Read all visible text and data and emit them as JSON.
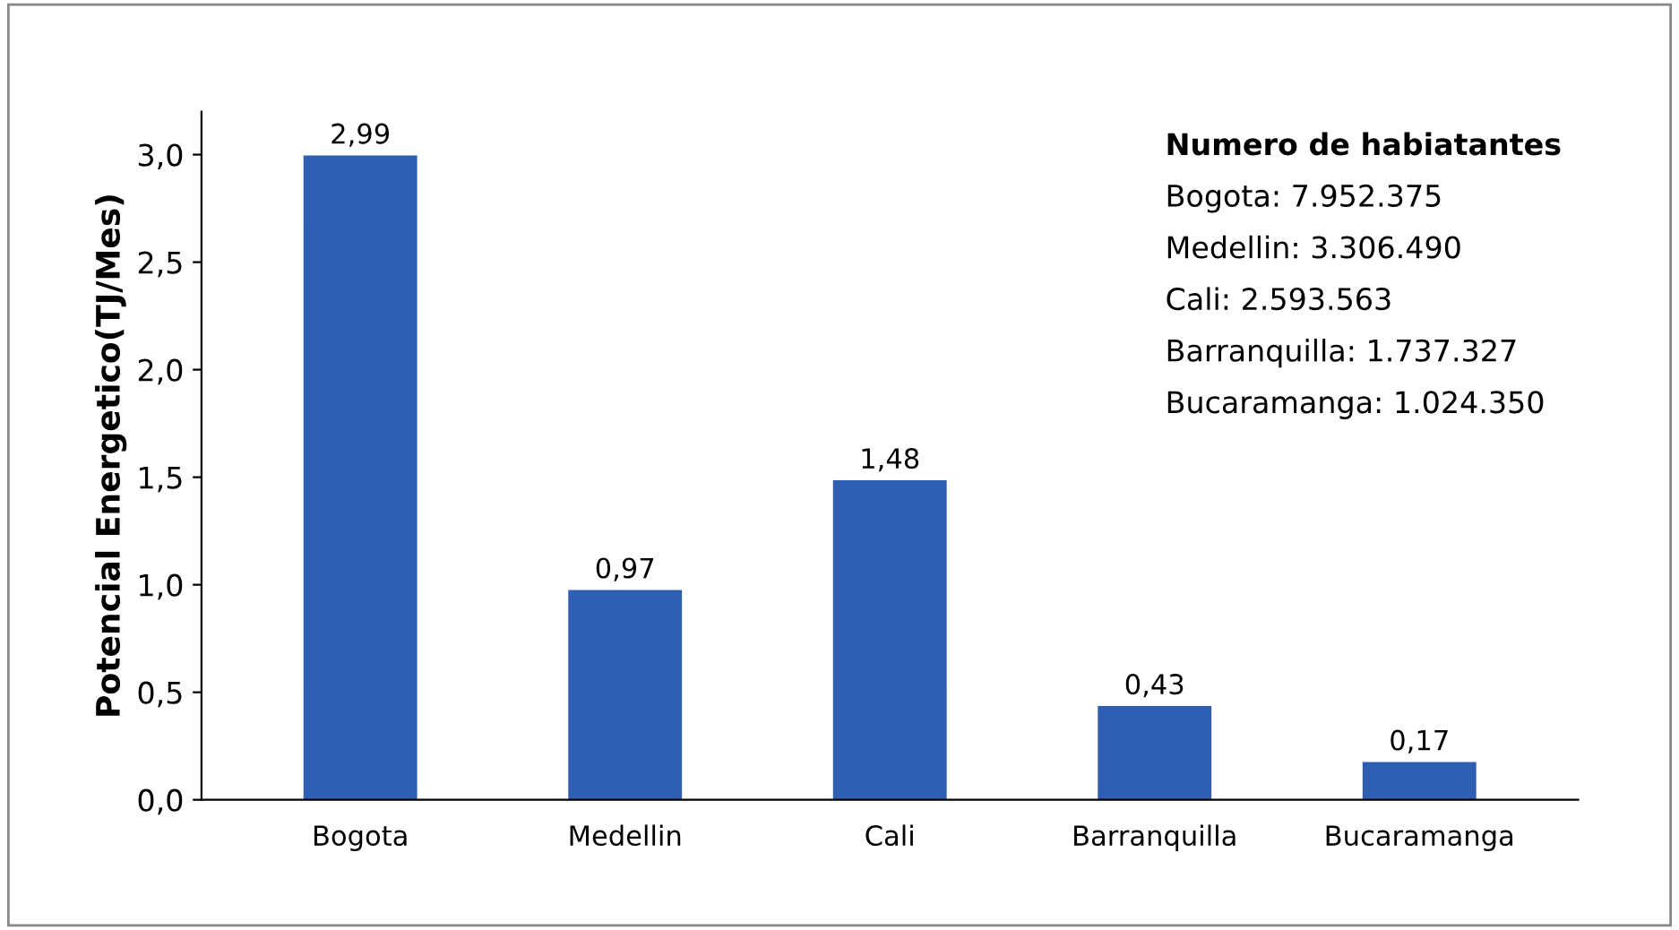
{
  "chart_data": {
    "type": "bar",
    "ylabel": "Potencial Energetico(TJ/Mes)",
    "categories": [
      "Bogota",
      "Medellin",
      "Cali",
      "Barranquilla",
      "Bucaramanga"
    ],
    "values": [
      2.99,
      0.97,
      1.48,
      0.43,
      0.17
    ],
    "value_labels": [
      "2,99",
      "0,97",
      "1,48",
      "0,43",
      "0,17"
    ],
    "color": "#2f5fb3",
    "ylim": [
      0,
      3.2
    ],
    "yticks": [
      {
        "value": 0,
        "label": "0,0"
      },
      {
        "value": 0.5,
        "label": "0,5"
      },
      {
        "value": 1.0,
        "label": "1,0"
      },
      {
        "value": 1.5,
        "label": "1,5"
      },
      {
        "value": 2.0,
        "label": "2,0"
      },
      {
        "value": 2.5,
        "label": "2,5"
      },
      {
        "value": 3.0,
        "label": "3,0"
      }
    ],
    "grid": false,
    "annotations": [
      "Numero de habiatantes",
      "Bogota: 7.952.375",
      "Medellin: 3.306.490",
      "Cali: 2.593.563",
      "Barranquilla: 1.737.327",
      "Bucaramanga: 1.024.350"
    ]
  }
}
